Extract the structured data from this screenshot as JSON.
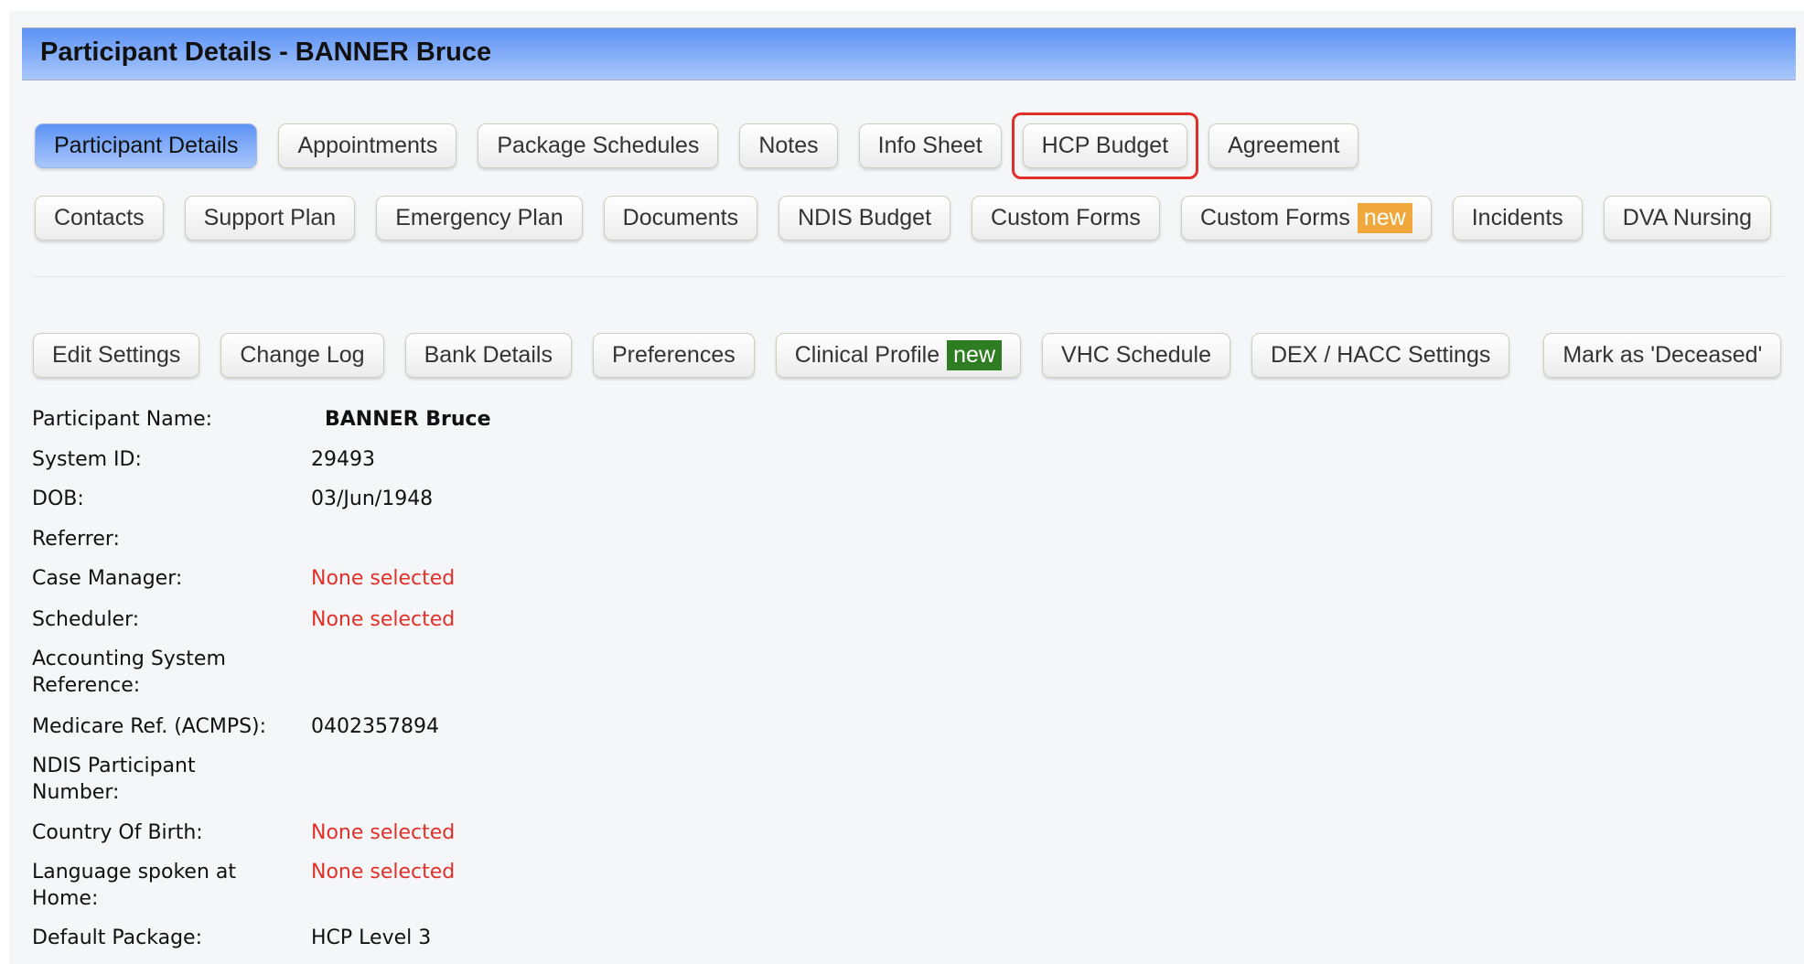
{
  "header": {
    "title": "Participant Details - BANNER Bruce"
  },
  "tabs_row1": [
    {
      "label": "Participant Details",
      "active": true
    },
    {
      "label": "Appointments"
    },
    {
      "label": "Package Schedules"
    },
    {
      "label": "Notes"
    },
    {
      "label": "Info Sheet"
    },
    {
      "label": "HCP Budget",
      "highlighted": true
    },
    {
      "label": "Agreement"
    }
  ],
  "tabs_row2": [
    {
      "label": "Contacts"
    },
    {
      "label": "Support Plan"
    },
    {
      "label": "Emergency Plan"
    },
    {
      "label": "Documents"
    },
    {
      "label": "NDIS Budget"
    },
    {
      "label": "Custom Forms"
    },
    {
      "label": "Custom Forms",
      "badge": "new",
      "badge_color": "#f0a83c"
    },
    {
      "label": "Incidents"
    },
    {
      "label": "DVA Nursing"
    }
  ],
  "actions": [
    {
      "label": "Edit Settings"
    },
    {
      "label": "Change Log"
    },
    {
      "label": "Bank Details"
    },
    {
      "label": "Preferences"
    },
    {
      "label": "Clinical Profile",
      "badge": "new",
      "badge_color": "#2e7d22"
    },
    {
      "label": "VHC Schedule"
    },
    {
      "label": "DEX / HACC Settings"
    },
    {
      "label": "Mark as 'Deceased'"
    }
  ],
  "fields": [
    {
      "label": "Participant Name:",
      "value": "BANNER Bruce"
    },
    {
      "label": "System ID:",
      "value": "29493"
    },
    {
      "label": "DOB:",
      "value": "03/Jun/1948"
    },
    {
      "label": "Referrer:",
      "value": ""
    },
    {
      "label": "Case Manager:",
      "value": "None selected"
    },
    {
      "label": "Scheduler:",
      "value": "None selected"
    },
    {
      "label": "Accounting System Reference:",
      "value": ""
    },
    {
      "label": "Medicare Ref. (ACMPS):",
      "value": "0402357894"
    },
    {
      "label": "NDIS Participant Number:",
      "value": ""
    },
    {
      "label": "Country Of Birth:",
      "value": "None selected"
    },
    {
      "label": "Language spoken at Home:",
      "value": "None selected"
    },
    {
      "label": "Default Package:",
      "value": "HCP Level 3"
    }
  ],
  "colors": {
    "accent": "#5d93f5",
    "warning": "#e0302a"
  }
}
